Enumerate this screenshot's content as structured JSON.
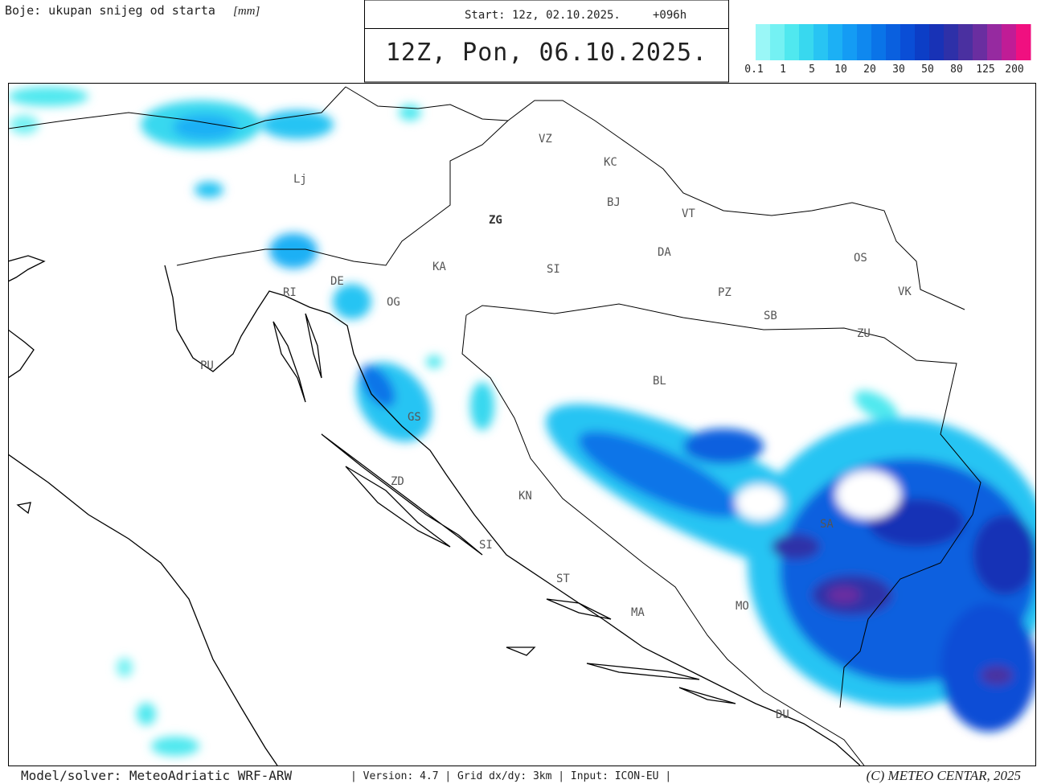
{
  "header": {
    "caption": "Boje: ukupan snijeg od starta",
    "caption_unit": "[mm]",
    "start": "Start: 12z, 02.10.2025.",
    "lead": "+096h",
    "valid": "12Z, Pon, 06.10.2025."
  },
  "legend": {
    "labels": [
      "0.1",
      "1",
      "5",
      "10",
      "20",
      "30",
      "50",
      "80",
      "125",
      "200"
    ],
    "colors": [
      "#9af7f7",
      "#74f1f3",
      "#50e8ef",
      "#38d8ef",
      "#28c4f3",
      "#1cb0f5",
      "#149cf4",
      "#0f88ef",
      "#0a74e8",
      "#0a60df",
      "#0a4ed6",
      "#0c3ec6",
      "#1832b6",
      "#2e30a8",
      "#4a30a0",
      "#6a2ea0",
      "#962aa0",
      "#c01c96",
      "#f01080"
    ]
  },
  "map": {
    "labels": [
      "VZ",
      "KC",
      "BJ",
      "Lj",
      "ZG",
      "VT",
      "DA",
      "KA",
      "SI",
      "OS",
      "RI",
      "DE",
      "OG",
      "PZ",
      "VK",
      "SB",
      "ZU",
      "PU",
      "BL",
      "GS",
      "ZD",
      "KN",
      "SA",
      "SI",
      "ST",
      "MA",
      "MO",
      "DU"
    ]
  },
  "footer": {
    "model": "Model/solver: MeteoAdriatic WRF-ARW",
    "info": "| Version: 4.7 | Grid dx/dy: 3km | Input: ICON-EU |",
    "copyright": "(C) METEO CENTAR, 2025"
  }
}
